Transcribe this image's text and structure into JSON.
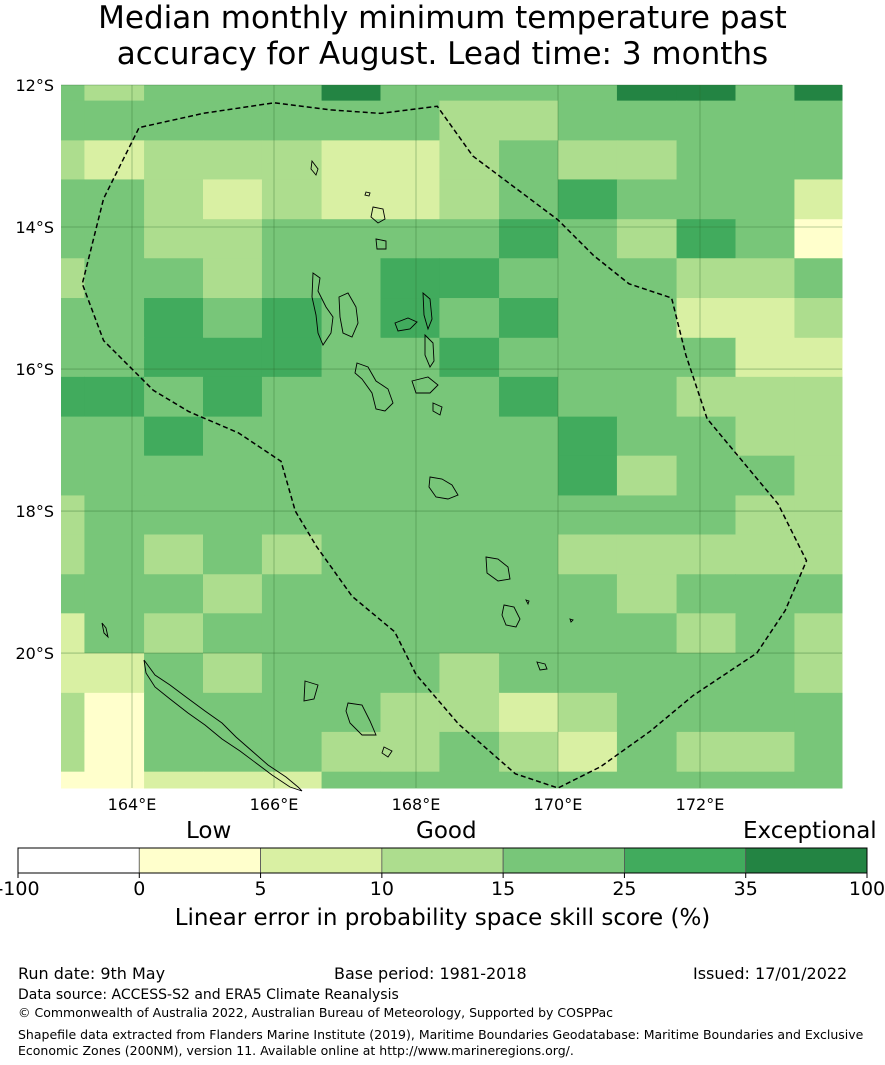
{
  "title_line1": "Median monthly minimum temperature past",
  "title_line2": "accuracy for August. Lead time: 3 months",
  "map": {
    "lon_range": [
      163,
      174
    ],
    "lat_range": [
      -12,
      -21.9
    ],
    "lon_ticks": [
      "164°E",
      "166°E",
      "168°E",
      "170°E",
      "172°E"
    ],
    "lat_ticks": [
      "12°S",
      "14°S",
      "16°S",
      "18°S",
      "20°S"
    ],
    "grid_cols_lon": [
      163.0,
      163.33,
      164.17,
      165.0,
      165.83,
      166.67,
      167.5,
      168.33,
      169.17,
      170.0,
      170.83,
      171.67,
      172.5,
      173.33,
      174.0
    ],
    "grid_rows_lat": [
      -12.0,
      -12.22,
      -12.78,
      -13.33,
      -13.89,
      -14.44,
      -15.0,
      -15.56,
      -16.11,
      -16.67,
      -17.22,
      -17.78,
      -18.33,
      -18.89,
      -19.44,
      -20.0,
      -20.56,
      -21.11,
      -21.67,
      -21.9
    ],
    "cells": [
      [
        3,
        2,
        3,
        3,
        3,
        5,
        3,
        3,
        3,
        3,
        5,
        5,
        3,
        5
      ],
      [
        3,
        3,
        3,
        3,
        3,
        3,
        3,
        2,
        2,
        3,
        3,
        3,
        3,
        3
      ],
      [
        2,
        1,
        2,
        2,
        2,
        1,
        1,
        2,
        3,
        2,
        2,
        3,
        3,
        3
      ],
      [
        3,
        3,
        2,
        1,
        2,
        1,
        1,
        2,
        3,
        4,
        3,
        3,
        3,
        1
      ],
      [
        3,
        3,
        2,
        2,
        3,
        3,
        3,
        3,
        4,
        3,
        2,
        4,
        3,
        0
      ],
      [
        2,
        3,
        3,
        2,
        3,
        3,
        4,
        4,
        3,
        3,
        3,
        2,
        2,
        3
      ],
      [
        3,
        3,
        4,
        3,
        4,
        3,
        4,
        3,
        4,
        3,
        3,
        1,
        1,
        2
      ],
      [
        3,
        3,
        4,
        4,
        4,
        3,
        3,
        4,
        3,
        3,
        3,
        3,
        1,
        1
      ],
      [
        4,
        4,
        3,
        4,
        3,
        3,
        3,
        3,
        4,
        3,
        3,
        2,
        2,
        2
      ],
      [
        3,
        3,
        4,
        3,
        3,
        3,
        3,
        3,
        3,
        4,
        3,
        3,
        2,
        2
      ],
      [
        3,
        3,
        3,
        3,
        3,
        3,
        3,
        3,
        3,
        4,
        2,
        3,
        3,
        2
      ],
      [
        2,
        3,
        3,
        3,
        3,
        3,
        3,
        3,
        3,
        3,
        3,
        3,
        2,
        2
      ],
      [
        2,
        3,
        2,
        3,
        2,
        3,
        3,
        3,
        3,
        2,
        2,
        2,
        2,
        2
      ],
      [
        3,
        3,
        3,
        2,
        3,
        3,
        3,
        3,
        3,
        3,
        2,
        3,
        3,
        3
      ],
      [
        1,
        3,
        2,
        3,
        3,
        3,
        3,
        3,
        3,
        3,
        3,
        2,
        3,
        2
      ],
      [
        1,
        1,
        3,
        2,
        3,
        3,
        3,
        2,
        3,
        3,
        3,
        3,
        3,
        2
      ],
      [
        2,
        0,
        3,
        3,
        3,
        3,
        2,
        2,
        1,
        2,
        3,
        3,
        3,
        3
      ],
      [
        2,
        0,
        3,
        3,
        3,
        2,
        2,
        3,
        2,
        1,
        3,
        2,
        2,
        3
      ],
      [
        0,
        0,
        1,
        1,
        1,
        3,
        3,
        3,
        3,
        3,
        3,
        3,
        3,
        3
      ]
    ],
    "eez_boundary": [
      [
        166.8,
        -12.35
      ],
      [
        167.5,
        -12.4
      ],
      [
        168.3,
        -12.3
      ],
      [
        168.8,
        -13.0
      ],
      [
        169.6,
        -13.6
      ],
      [
        170.0,
        -13.9
      ],
      [
        170.5,
        -14.4
      ],
      [
        171.0,
        -14.8
      ],
      [
        171.6,
        -15.0
      ],
      [
        171.8,
        -15.8
      ],
      [
        172.1,
        -16.7
      ],
      [
        172.6,
        -17.3
      ],
      [
        173.1,
        -17.9
      ],
      [
        173.5,
        -18.7
      ],
      [
        173.2,
        -19.4
      ],
      [
        172.8,
        -20.0
      ],
      [
        171.9,
        -20.6
      ],
      [
        171.3,
        -21.1
      ],
      [
        170.6,
        -21.6
      ],
      [
        170.0,
        -21.9
      ],
      [
        169.4,
        -21.7
      ],
      [
        168.6,
        -21.0
      ],
      [
        168.0,
        -20.3
      ],
      [
        167.7,
        -19.7
      ],
      [
        167.1,
        -19.2
      ],
      [
        166.6,
        -18.5
      ],
      [
        166.3,
        -18.0
      ],
      [
        166.1,
        -17.3
      ],
      [
        165.5,
        -16.9
      ],
      [
        164.8,
        -16.6
      ],
      [
        164.3,
        -16.3
      ],
      [
        163.6,
        -15.6
      ],
      [
        163.3,
        -14.8
      ],
      [
        163.6,
        -13.6
      ],
      [
        164.1,
        -12.6
      ],
      [
        165.0,
        -12.4
      ],
      [
        166.0,
        -12.25
      ],
      [
        166.8,
        -12.35
      ]
    ]
  },
  "colorbar": {
    "categories": [
      "Low",
      "Good",
      "Exceptional"
    ],
    "ticks": [
      "-100",
      "0",
      "5",
      "10",
      "15",
      "25",
      "35",
      "100"
    ],
    "colors": [
      "#ffffff",
      "#ffffcc",
      "#d9f0a3",
      "#addd8e",
      "#78c679",
      "#41ab5d",
      "#238443"
    ],
    "label": "Linear error in probability space skill score (%)"
  },
  "footer": {
    "run_date": "Run date: 9th May",
    "base_period": "Base period: 1981-2018",
    "issued": "Issued: 17/01/2022",
    "data_source": "Data source: ACCESS-S2 and ERA5 Climate Reanalysis",
    "copyright": "© Commonwealth of Australia 2022, Australian Bureau of Meteorology, Supported by COSPPac",
    "shapefile_line1": "Shapefile data extracted from Flanders Marine Institute (2019), Maritime Boundaries Geodatabase: Maritime Boundaries and Exclusive",
    "shapefile_line2": "Economic Zones (200NM), version 11. Available online at http://www.marineregions.org/."
  }
}
